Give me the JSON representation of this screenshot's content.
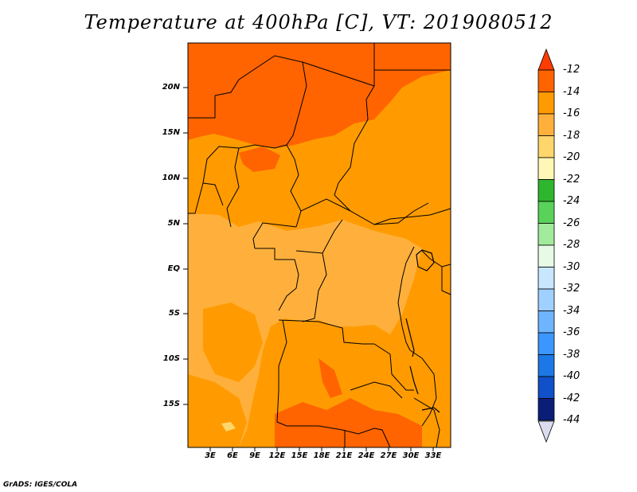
{
  "title": "Temperature at 400hPa [C], VT: 2019080512",
  "credit": "GrADS: IGES/COLA",
  "lat_labels": [
    "20N",
    "15N",
    "10N",
    "5N",
    "EQ",
    "5S",
    "10S",
    "15S"
  ],
  "lon_labels": [
    "3E",
    "6E",
    "9E",
    "12E",
    "15E",
    "18E",
    "21E",
    "24E",
    "27E",
    "30E",
    "33E"
  ],
  "colorbar": {
    "labels": [
      "-12",
      "-14",
      "-16",
      "-18",
      "-20",
      "-22",
      "-24",
      "-26",
      "-28",
      "-30",
      "-32",
      "-34",
      "-36",
      "-38",
      "-40",
      "-42",
      "-44"
    ],
    "colors": [
      "#ff3c00",
      "#ff6400",
      "#ff9b00",
      "#ffb03c",
      "#ffd66b",
      "#fff7b5",
      "#2eb62e",
      "#5ad25a",
      "#a2ea9c",
      "#e6fae6",
      "#c8e6ff",
      "#a0d0ff",
      "#6eb4ff",
      "#3c96ff",
      "#1c78e6",
      "#1050c8",
      "#0a1e78",
      "#dcdcf0"
    ]
  },
  "field_colors": {
    "t14": "#ff6400",
    "t16": "#ff9b00",
    "t18": "#ffb03c",
    "t20": "#ffd66b"
  }
}
